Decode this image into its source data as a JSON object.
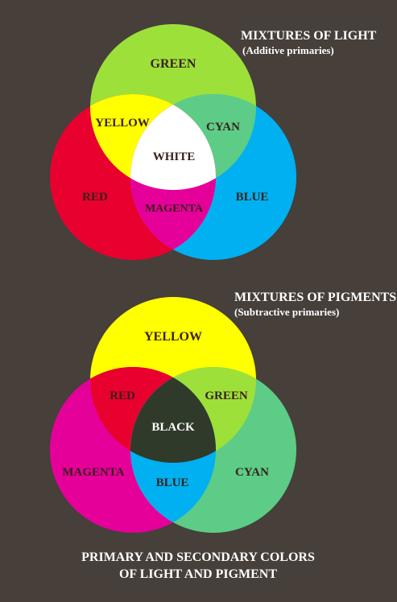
{
  "additive": {
    "heading": "MIXTURES OF LIGHT",
    "subheading": "(Additive primaries)",
    "colors": {
      "green": "#9de03a",
      "red": "#e8002f",
      "blue": "#00b0f0",
      "yellow": "#ffff00",
      "cyan": "#5ccc87",
      "magenta": "#e5009a",
      "white": "#ffffff"
    },
    "labels": {
      "green": "GREEN",
      "yellow": "YELLOW",
      "cyan": "CYAN",
      "white": "WHITE",
      "red": "RED",
      "magenta": "MAGENTA",
      "blue": "BLUE"
    }
  },
  "subtractive": {
    "heading": "MIXTURES OF PIGMENTS",
    "subheading": "(Subtractive primaries)",
    "colors": {
      "yellow": "#ffff00",
      "magenta": "#e5009a",
      "cyan": "#5ccc87",
      "red": "#e8002f",
      "green": "#9de03a",
      "blue": "#00b0f0",
      "black": "#303a2a"
    },
    "labels": {
      "yellow": "YELLOW",
      "red": "RED",
      "green": "GREEN",
      "black": "BLACK",
      "magenta": "MAGENTA",
      "blue": "BLUE",
      "cyan": "CYAN"
    }
  },
  "footer": {
    "line1": "PRIMARY AND SECONDARY COLORS",
    "line2": "OF LIGHT AND PIGMENT"
  },
  "label_color_dark": "#3a1f1a",
  "label_color_light": "#ffffff"
}
